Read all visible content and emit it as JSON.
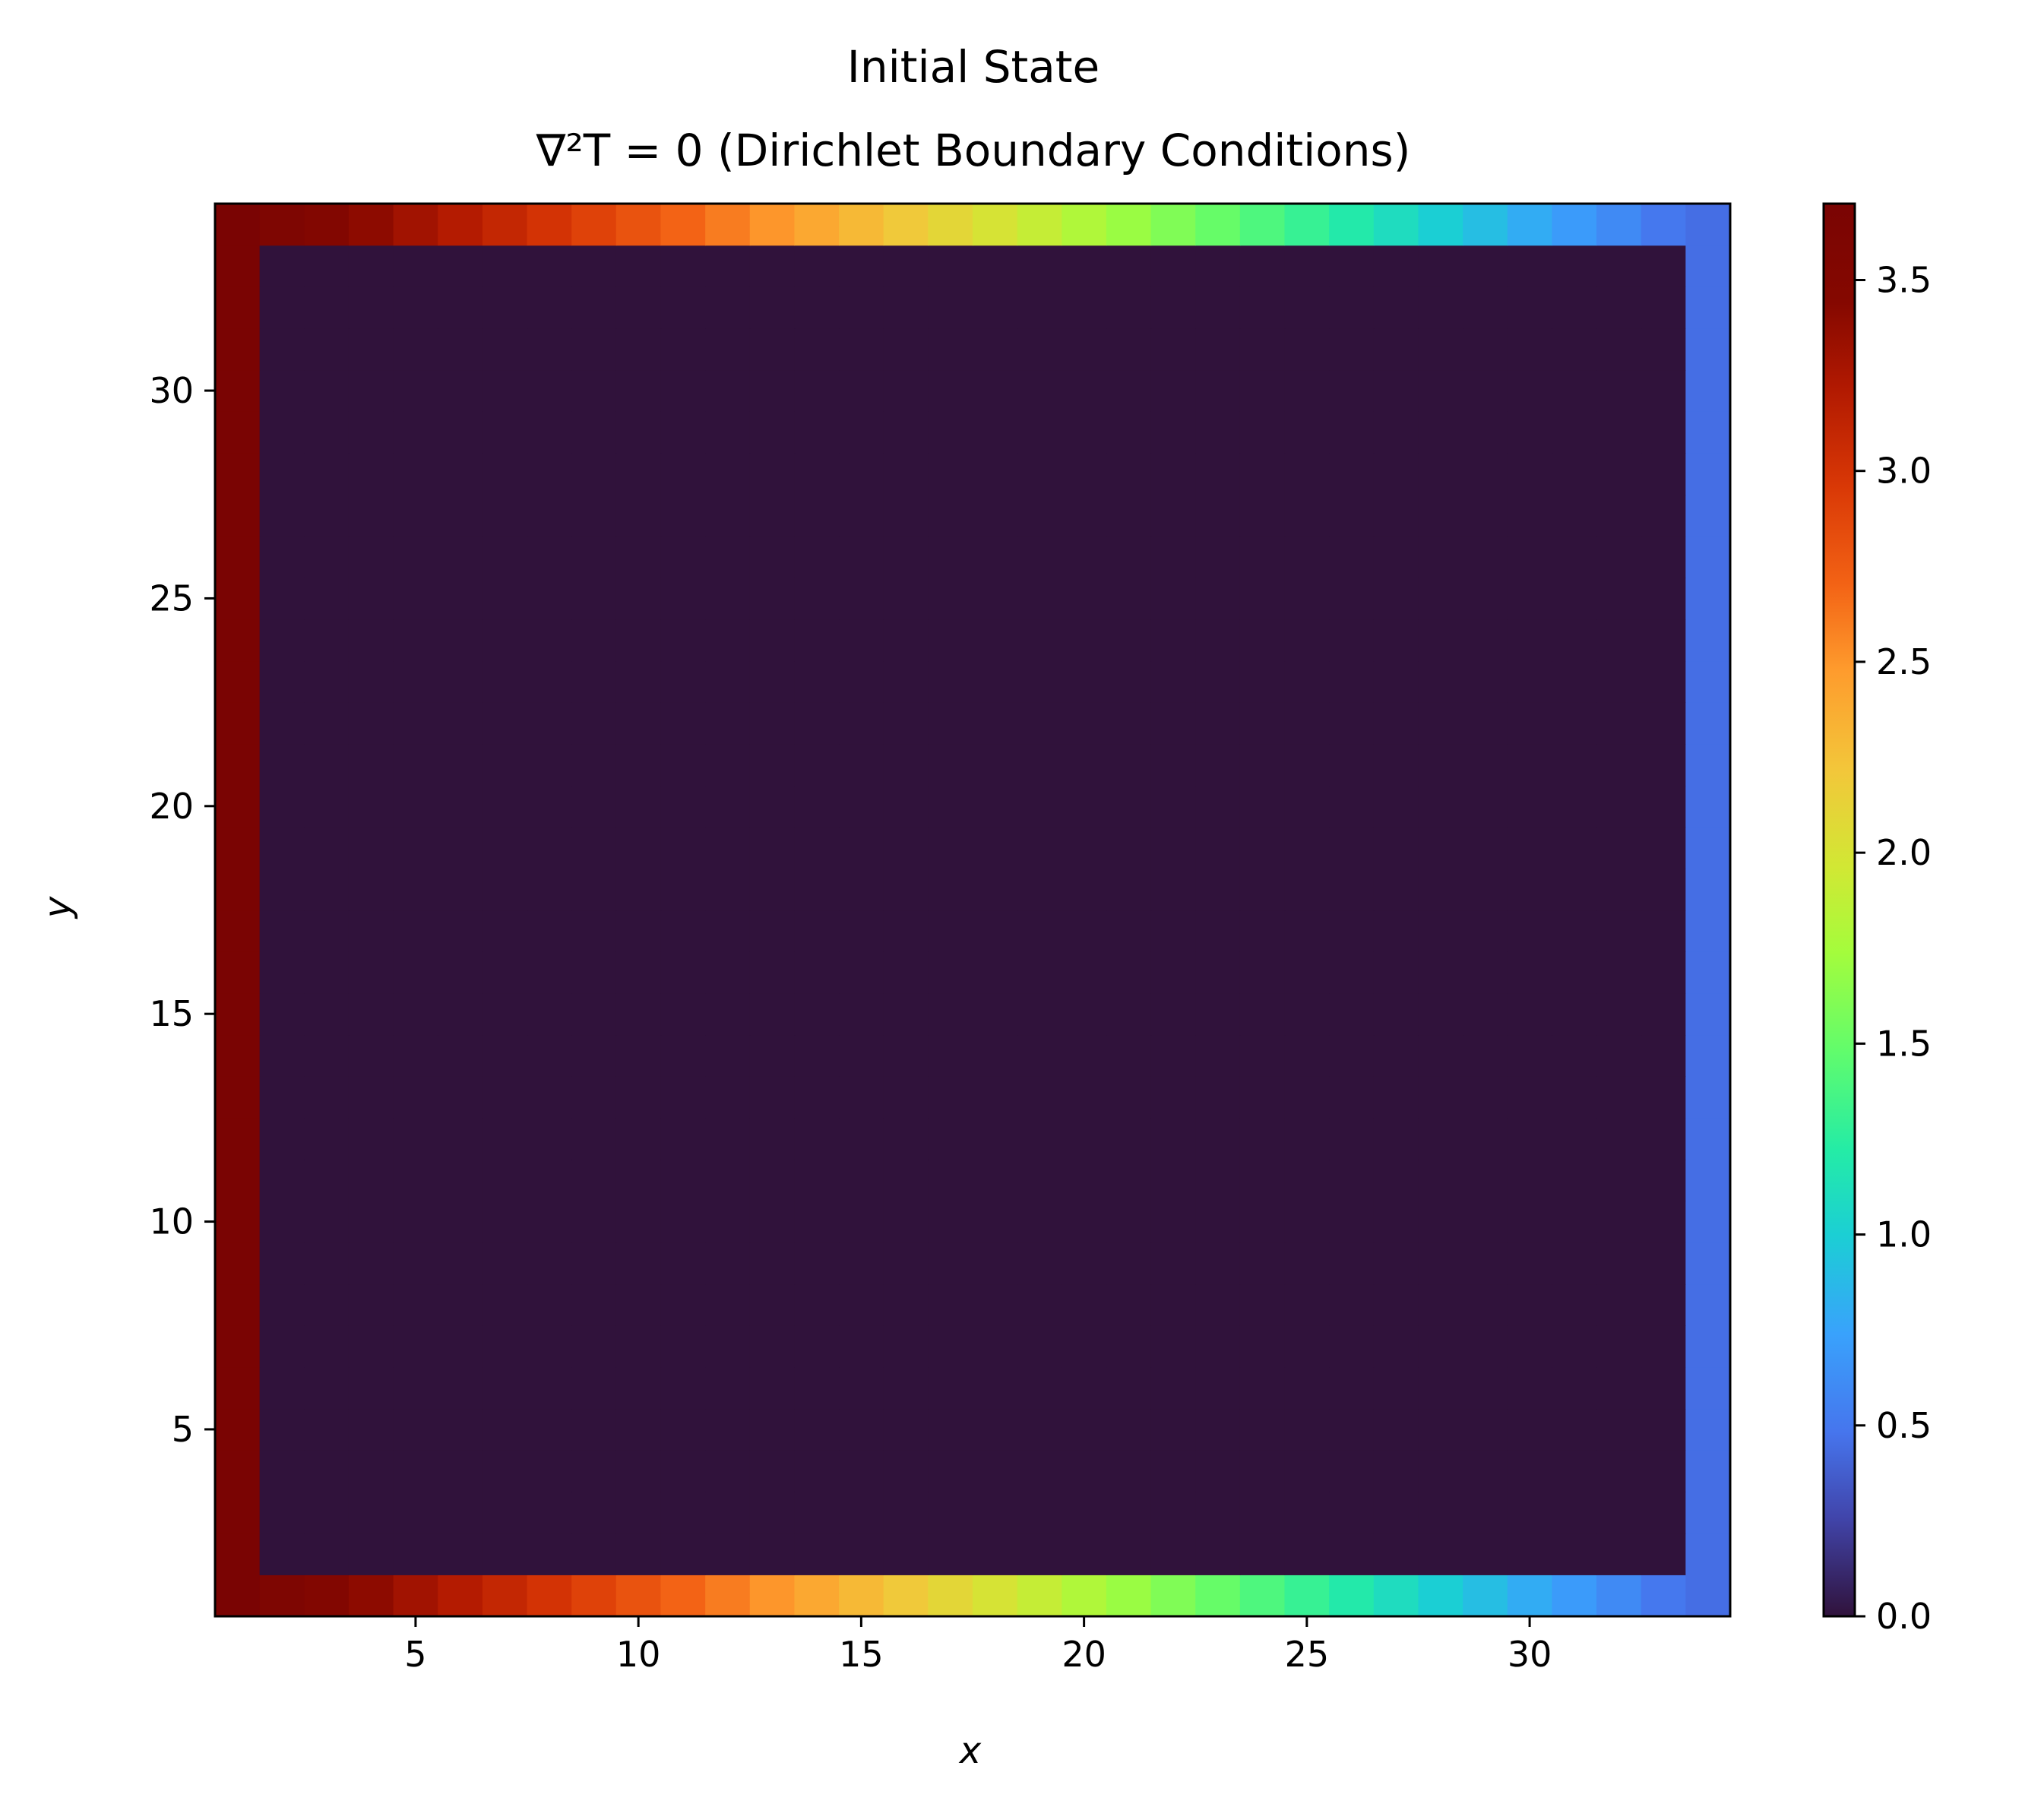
{
  "chart_data": {
    "type": "heatmap",
    "title_line1": "Initial State",
    "title_line2": "∇²T = 0 (Dirichlet Boundary Conditions)",
    "xlabel": "x",
    "ylabel": "y",
    "grid": false,
    "colormap": "turbo",
    "xlim": [
      0.5,
      34.5
    ],
    "ylim": [
      0.5,
      34.5
    ],
    "xticks": [
      5,
      10,
      15,
      20,
      25,
      30
    ],
    "yticks": [
      5,
      10,
      15,
      20,
      25,
      30
    ],
    "colorbar": {
      "vmin": 0.0,
      "vmax": 3.7,
      "ticks": [
        0.0,
        0.5,
        1.0,
        1.5,
        2.0,
        2.5,
        3.0,
        3.5
      ],
      "tick_labels": [
        "0.0",
        "0.5",
        "1.0",
        "1.5",
        "2.0",
        "2.5",
        "3.0",
        "3.5"
      ]
    },
    "grid_size": [
      34,
      34
    ],
    "interior_value": 0.0,
    "left_boundary_value": 3.7,
    "right_boundary_value": 0.45,
    "top_boundary_values": [
      3.7,
      3.6,
      3.5,
      3.4,
      3.3,
      3.2,
      3.1,
      3.0,
      2.9,
      2.8,
      2.7,
      2.6,
      2.5,
      2.4,
      2.3,
      2.2,
      2.1,
      2.0,
      1.9,
      1.8,
      1.7,
      1.6,
      1.5,
      1.4,
      1.3,
      1.2,
      1.1,
      1.0,
      0.9,
      0.8,
      0.7,
      0.6,
      0.5,
      0.45
    ],
    "bottom_boundary_values": [
      3.7,
      3.6,
      3.5,
      3.4,
      3.3,
      3.2,
      3.1,
      3.0,
      2.9,
      2.8,
      2.7,
      2.6,
      2.5,
      2.4,
      2.3,
      2.2,
      2.1,
      2.0,
      1.9,
      1.8,
      1.7,
      1.6,
      1.5,
      1.4,
      1.3,
      1.2,
      1.1,
      1.0,
      0.9,
      0.8,
      0.7,
      0.6,
      0.5,
      0.45
    ]
  }
}
